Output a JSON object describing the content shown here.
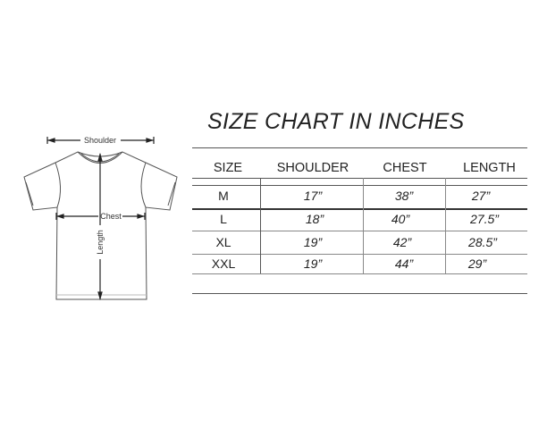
{
  "title": "SIZE CHART IN INCHES",
  "diagram": {
    "shoulder_label": "Shoulder",
    "chest_label": "Chest",
    "length_label": "Length"
  },
  "table": {
    "headers": [
      "SIZE",
      "SHOULDER",
      "CHEST",
      "LENGTH"
    ],
    "rows": [
      [
        "M",
        "17”",
        "38”",
        "27”"
      ],
      [
        "L",
        "18”",
        "40”",
        "27.5”"
      ],
      [
        "XL",
        "19”",
        "42”",
        "28.5”"
      ],
      [
        "XXL",
        "19”",
        "44”",
        "29”"
      ]
    ]
  }
}
